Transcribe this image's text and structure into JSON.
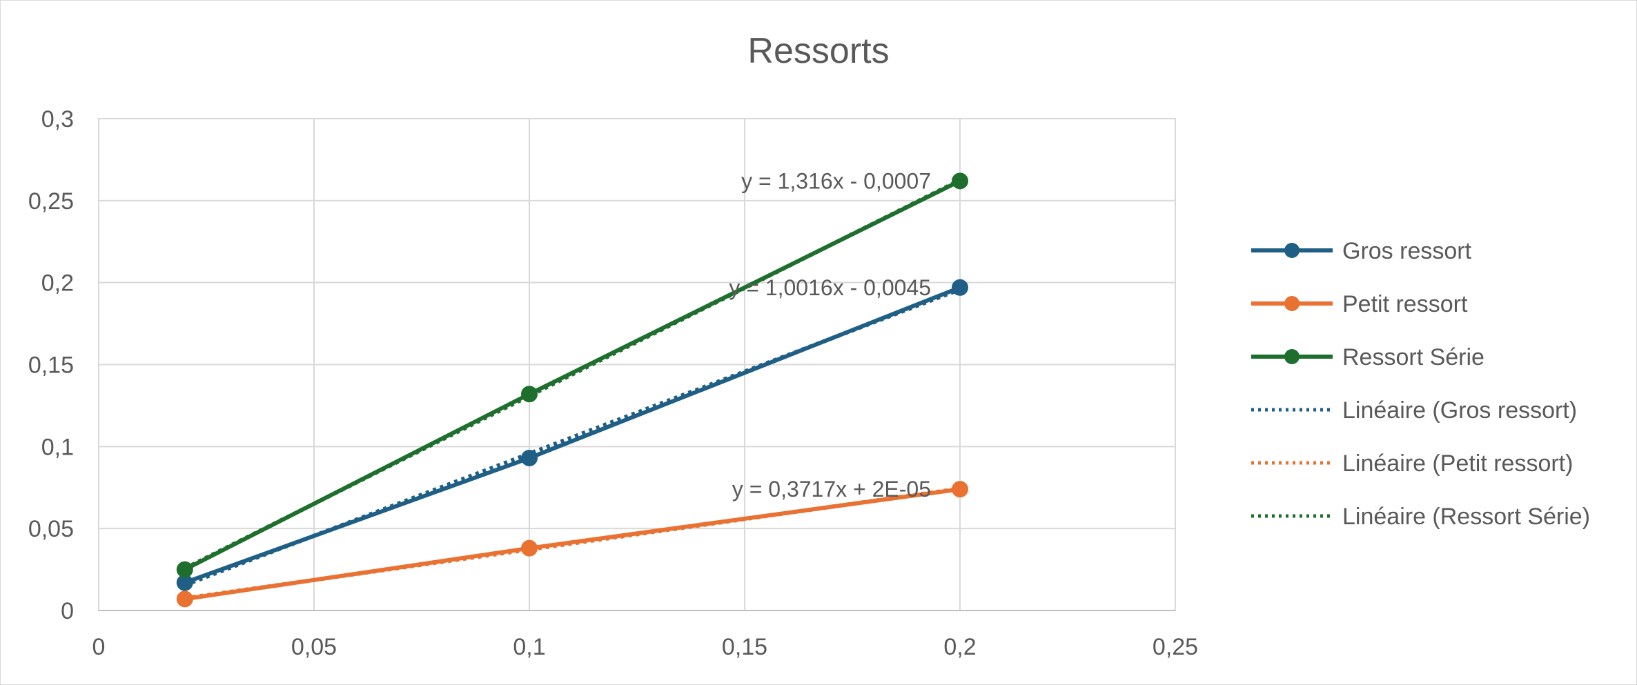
{
  "chart_data": {
    "type": "line",
    "title": "Ressorts",
    "xlabel": "",
    "ylabel": "",
    "xlim": [
      0,
      0.25
    ],
    "ylim": [
      0,
      0.3
    ],
    "x_ticks": [
      {
        "value": 0,
        "label": "0"
      },
      {
        "value": 0.05,
        "label": "0,05"
      },
      {
        "value": 0.1,
        "label": "0,1"
      },
      {
        "value": 0.15,
        "label": "0,15"
      },
      {
        "value": 0.2,
        "label": "0,2"
      },
      {
        "value": 0.25,
        "label": "0,25"
      }
    ],
    "y_ticks": [
      {
        "value": 0,
        "label": "0"
      },
      {
        "value": 0.05,
        "label": "0,05"
      },
      {
        "value": 0.1,
        "label": "0,1"
      },
      {
        "value": 0.15,
        "label": "0,15"
      },
      {
        "value": 0.2,
        "label": "0,2"
      },
      {
        "value": 0.25,
        "label": "0,25"
      },
      {
        "value": 0.3,
        "label": "0,3"
      }
    ],
    "grid": true,
    "legend_position": "right",
    "series": [
      {
        "key": "gros",
        "name": "Gros ressort",
        "color": "#1f5f86",
        "x": [
          0.02,
          0.1,
          0.2
        ],
        "y": [
          0.017,
          0.093,
          0.197
        ],
        "trendline": {
          "name": "Linéaire (Gros ressort)",
          "slope": 1.0016,
          "intercept": -0.0045,
          "equation": "y = 1,0016x - 0,0045"
        }
      },
      {
        "key": "petit",
        "name": "Petit ressort",
        "color": "#e97132",
        "x": [
          0.02,
          0.1,
          0.2
        ],
        "y": [
          0.007,
          0.038,
          0.074
        ],
        "trendline": {
          "name": "Linéaire (Petit ressort)",
          "slope": 0.3717,
          "intercept": 2e-05,
          "equation": "y = 0,3717x + 2E-05"
        }
      },
      {
        "key": "serie",
        "name": "Ressort Série",
        "color": "#1e6f2e",
        "x": [
          0.02,
          0.1,
          0.2
        ],
        "y": [
          0.025,
          0.132,
          0.262
        ],
        "trendline": {
          "name": "Linéaire (Ressort Série)",
          "slope": 1.316,
          "intercept": -0.0007,
          "equation": "y = 1,316x - 0,0007"
        }
      }
    ]
  }
}
